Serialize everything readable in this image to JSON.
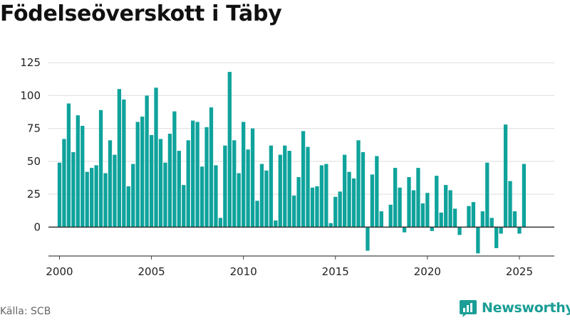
{
  "title": "Födelseöverskott i Täby",
  "source": "Källa: SCB",
  "brand": {
    "name": "Newsworthy",
    "icon": "bar-chart-icon",
    "color": "#1a9e96"
  },
  "chart_data": {
    "type": "bar",
    "title": "Födelseöverskott i Täby",
    "xlabel": "",
    "ylabel": "",
    "bar_color": "#0fa39c",
    "ylim": [
      -22,
      137
    ],
    "xlim": [
      1999.4,
      2026.9
    ],
    "grid": true,
    "y_ticks": [
      0,
      25,
      50,
      75,
      100,
      125
    ],
    "x_ticks": [
      "2000",
      "2005",
      "2010",
      "2015",
      "2020",
      "2025"
    ],
    "values": [
      49,
      67,
      94,
      57,
      85,
      77,
      42,
      45,
      47,
      89,
      41,
      66,
      55,
      105,
      97,
      31,
      48,
      80,
      84,
      100,
      70,
      106,
      67,
      49,
      71,
      88,
      58,
      32,
      66,
      81,
      80,
      46,
      76,
      91,
      47,
      7,
      62,
      118,
      66,
      41,
      80,
      59,
      75,
      20,
      48,
      43,
      62,
      5,
      55,
      62,
      58,
      24,
      38,
      73,
      61,
      30,
      31,
      47,
      48,
      3,
      23,
      27,
      55,
      42,
      37,
      66,
      57,
      -18,
      40,
      54,
      12,
      0,
      17,
      45,
      30,
      -4,
      38,
      28,
      45,
      18,
      26,
      -3,
      39,
      11,
      32,
      28,
      14,
      -6,
      0,
      16,
      19,
      -20,
      12,
      49,
      7,
      -16,
      -5,
      78,
      35,
      12,
      -5,
      48
    ]
  }
}
